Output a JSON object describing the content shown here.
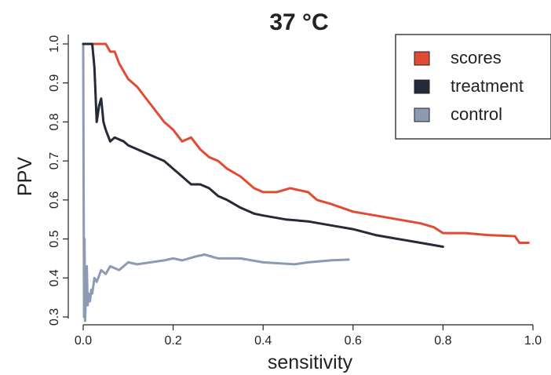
{
  "chart_data": {
    "type": "line",
    "title": "37 °C",
    "xlabel": "sensitivity",
    "ylabel": "PPV",
    "xlim": [
      0.0,
      1.0
    ],
    "ylim": [
      0.3,
      1.0
    ],
    "x_ticks": [
      0.0,
      0.2,
      0.4,
      0.6,
      0.8,
      1.0
    ],
    "x_tick_labels": [
      "0.0",
      "0.2",
      "0.4",
      "0.6",
      "0.8",
      "1.0"
    ],
    "y_ticks": [
      0.3,
      0.4,
      0.5,
      0.6,
      0.7,
      0.8,
      0.9,
      1.0
    ],
    "y_tick_labels": [
      "0.3",
      "0.4",
      "0.5",
      "0.6",
      "0.7",
      "0.8",
      "0.9",
      "1.0"
    ],
    "grid": false,
    "legend_position": "top-right",
    "series": [
      {
        "name": "scores",
        "color": "#e34a33",
        "x": [
          0.0,
          0.01,
          0.05,
          0.06,
          0.07,
          0.08,
          0.1,
          0.12,
          0.14,
          0.16,
          0.18,
          0.2,
          0.22,
          0.24,
          0.26,
          0.28,
          0.3,
          0.32,
          0.35,
          0.38,
          0.4,
          0.43,
          0.46,
          0.5,
          0.52,
          0.55,
          0.6,
          0.65,
          0.7,
          0.75,
          0.78,
          0.8,
          0.85,
          0.9,
          0.96,
          0.97,
          0.99
        ],
        "y": [
          1.0,
          1.0,
          1.0,
          0.98,
          0.98,
          0.95,
          0.91,
          0.89,
          0.86,
          0.83,
          0.8,
          0.78,
          0.75,
          0.76,
          0.73,
          0.71,
          0.7,
          0.68,
          0.66,
          0.63,
          0.62,
          0.62,
          0.63,
          0.62,
          0.6,
          0.59,
          0.57,
          0.56,
          0.55,
          0.54,
          0.53,
          0.515,
          0.515,
          0.51,
          0.507,
          0.49,
          0.49
        ]
      },
      {
        "name": "treatment",
        "color": "#252a38",
        "x": [
          0.0,
          0.01,
          0.02,
          0.025,
          0.03,
          0.035,
          0.04,
          0.045,
          0.05,
          0.06,
          0.07,
          0.09,
          0.1,
          0.12,
          0.14,
          0.16,
          0.18,
          0.2,
          0.22,
          0.24,
          0.26,
          0.28,
          0.3,
          0.32,
          0.35,
          0.38,
          0.4,
          0.45,
          0.5,
          0.55,
          0.6,
          0.65,
          0.7,
          0.75,
          0.8
        ],
        "y": [
          1.0,
          1.0,
          1.0,
          0.94,
          0.8,
          0.84,
          0.86,
          0.8,
          0.78,
          0.75,
          0.76,
          0.75,
          0.74,
          0.73,
          0.72,
          0.71,
          0.7,
          0.68,
          0.66,
          0.64,
          0.64,
          0.63,
          0.61,
          0.6,
          0.58,
          0.565,
          0.56,
          0.55,
          0.545,
          0.535,
          0.525,
          0.51,
          0.5,
          0.49,
          0.48
        ]
      },
      {
        "name": "control",
        "color": "#8d9ab3",
        "x": [
          0.0,
          0.001,
          0.002,
          0.003,
          0.004,
          0.006,
          0.008,
          0.01,
          0.012,
          0.015,
          0.018,
          0.02,
          0.025,
          0.03,
          0.04,
          0.05,
          0.06,
          0.08,
          0.1,
          0.12,
          0.15,
          0.18,
          0.2,
          0.22,
          0.25,
          0.27,
          0.3,
          0.35,
          0.4,
          0.47,
          0.5,
          0.55,
          0.59
        ],
        "y": [
          1.0,
          0.6,
          0.3,
          0.5,
          0.29,
          0.35,
          0.43,
          0.33,
          0.36,
          0.34,
          0.37,
          0.36,
          0.4,
          0.39,
          0.42,
          0.41,
          0.43,
          0.42,
          0.44,
          0.435,
          0.44,
          0.445,
          0.45,
          0.445,
          0.455,
          0.46,
          0.45,
          0.45,
          0.44,
          0.435,
          0.44,
          0.445,
          0.447
        ]
      }
    ]
  }
}
